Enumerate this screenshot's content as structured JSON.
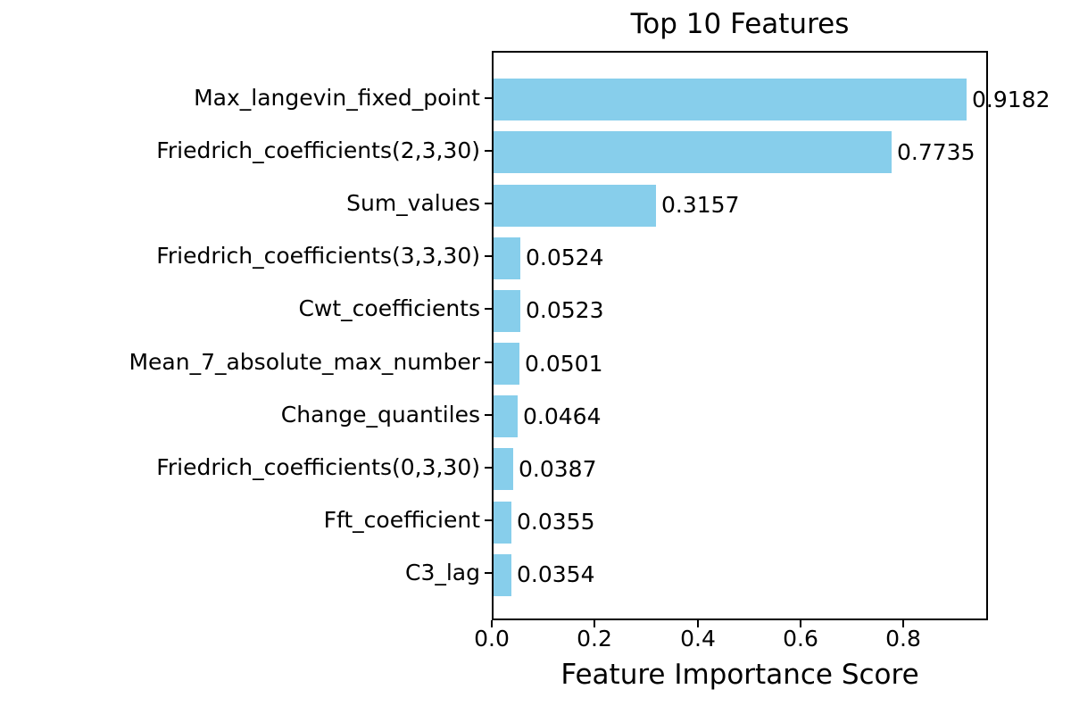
{
  "chart_data": {
    "type": "bar",
    "orientation": "horizontal",
    "title": "Top 10 Features",
    "xlabel": "Feature Importance Score",
    "ylabel": "",
    "categories": [
      "Max_langevin_fixed_point",
      "Friedrich_coefficients(2,3,30)",
      "Sum_values",
      "Friedrich_coefficients(3,3,30)",
      "Cwt_coefficients",
      "Mean_7_absolute_max_number",
      "Change_quantiles",
      "Friedrich_coefficients(0,3,30)",
      "Fft_coefficient",
      "C3_lag"
    ],
    "values": [
      0.9182,
      0.7735,
      0.3157,
      0.0524,
      0.0523,
      0.0501,
      0.0464,
      0.0387,
      0.0355,
      0.0354
    ],
    "value_labels": [
      "0.9182",
      "0.7735",
      "0.3157",
      "0.0524",
      "0.0523",
      "0.0501",
      "0.0464",
      "0.0387",
      "0.0355",
      "0.0354"
    ],
    "xticks": [
      0.0,
      0.2,
      0.4,
      0.6,
      0.8
    ],
    "xtick_labels": [
      "0.0",
      "0.2",
      "0.4",
      "0.6",
      "0.8"
    ],
    "xlim": [
      0,
      0.9641
    ],
    "grid": false,
    "legend": null,
    "bar_color": "#87CEEB",
    "text_color": "#000000",
    "spine_color": "#000000",
    "background_color": "#ffffff"
  }
}
